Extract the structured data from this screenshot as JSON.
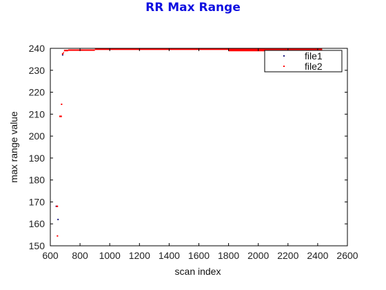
{
  "chart_data": {
    "type": "scatter",
    "title": "RR Max Range",
    "xlabel": "scan index",
    "ylabel": "max range value",
    "xlim": [
      600,
      2600
    ],
    "ylim": [
      150,
      240
    ],
    "xticks": [
      600,
      800,
      1000,
      1200,
      1400,
      1600,
      1800,
      2000,
      2200,
      2400,
      2600
    ],
    "yticks": [
      150,
      160,
      170,
      180,
      190,
      200,
      210,
      220,
      230,
      240
    ],
    "grid": false,
    "legend_position": "top-right",
    "series": [
      {
        "name": "file1",
        "color": "#1a1a80",
        "points": [
          [
            652,
            162
          ],
          [
            683,
            237
          ],
          [
            640,
            168
          ]
        ]
      },
      {
        "name": "file2",
        "color": "#ff0000",
        "points": [
          [
            648,
            154.5
          ],
          [
            676,
            214.5
          ],
          [
            683,
            237.5
          ]
        ],
        "segments": [
          {
            "x": [
              640,
              652
            ],
            "y": 168
          },
          {
            "x": [
              660,
              678
            ],
            "y": 209
          },
          {
            "x": [
              686,
              692
            ],
            "y": 238
          },
          {
            "x": [
              692,
              720
            ],
            "y": 239
          },
          {
            "x": [
              720,
              900
            ],
            "y": 239.2
          },
          {
            "x": [
              900,
              2430
            ],
            "y": 239.6
          },
          {
            "x": [
              1800,
              2430
            ],
            "y": 239
          }
        ]
      }
    ]
  }
}
